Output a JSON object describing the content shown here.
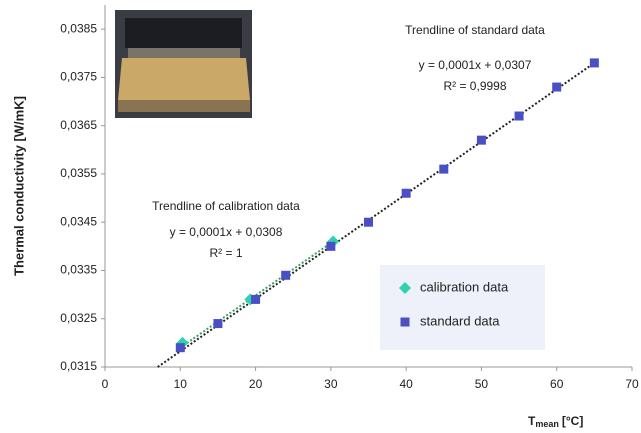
{
  "chart_data": {
    "type": "scatter",
    "y_label": "Thermal conductivity [W/mK]",
    "x_label_symbol": "T",
    "x_label_subscript": "mean",
    "x_label_unit": "[°C]",
    "xlim": [
      0,
      70
    ],
    "xticks": [
      0,
      10,
      20,
      30,
      40,
      50,
      60,
      70
    ],
    "ylim": [
      0.0315,
      0.039
    ],
    "yticks": [
      {
        "value": 0.0315,
        "label": "0,0315"
      },
      {
        "value": 0.0325,
        "label": "0,0325"
      },
      {
        "value": 0.0335,
        "label": "0,0335"
      },
      {
        "value": 0.0345,
        "label": "0,0345"
      },
      {
        "value": 0.0355,
        "label": "0,0355"
      },
      {
        "value": 0.0365,
        "label": "0,0365"
      },
      {
        "value": 0.0375,
        "label": "0,0375"
      },
      {
        "value": 0.0385,
        "label": "0,0385"
      }
    ],
    "series": [
      {
        "name": "calibration data",
        "color": "#2fd1b0",
        "marker": "diamond",
        "x": [
          10.3,
          19.3,
          30.3
        ],
        "values": [
          0.032,
          0.0329,
          0.0341
        ]
      },
      {
        "name": "standard data",
        "color": "#4a4fc4",
        "marker": "square",
        "x": [
          10,
          15,
          20,
          24,
          30,
          35,
          40,
          45,
          50,
          55,
          60,
          65
        ],
        "values": [
          0.0319,
          0.0324,
          0.0329,
          0.0334,
          0.034,
          0.0345,
          0.0351,
          0.0356,
          0.0362,
          0.0367,
          0.0373,
          0.0378
        ]
      }
    ],
    "trendlines": [
      {
        "color": "#222222",
        "x": [
          7,
          65
        ],
        "values": [
          0.0315,
          0.0378
        ]
      },
      {
        "color": "#3aa060",
        "x": [
          10,
          30.3
        ],
        "values": [
          0.0319,
          0.0341
        ]
      }
    ],
    "annotations": [
      "Trendline of standard data",
      "y = 0,0001x + 0,0307",
      "R² = 0,9998",
      "Trendline of calibration data",
      "y = 0,0001x + 0,0308",
      "R² = 1"
    ]
  }
}
